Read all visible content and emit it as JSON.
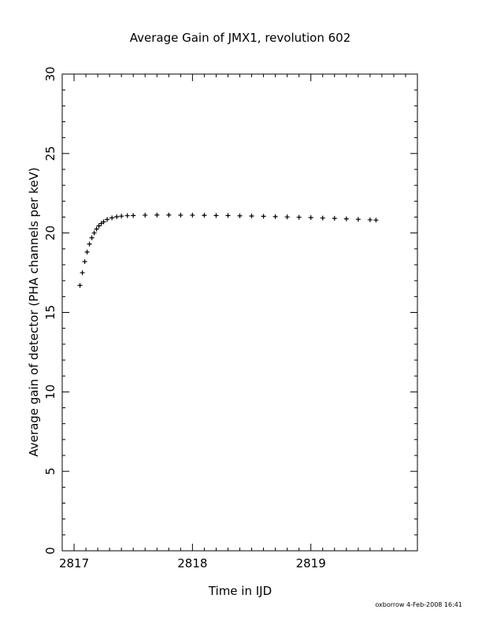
{
  "chart_data": {
    "type": "scatter",
    "title": "Average Gain of JMX1, revolution 602",
    "xlabel": "Time in IJD",
    "ylabel": "Average gain of detector (PHA channels per keV)",
    "xlim": [
      2816.9,
      2819.9
    ],
    "ylim": [
      0,
      30
    ],
    "x_ticks": [
      2817,
      2818,
      2819
    ],
    "x_tick_labels": [
      "2817",
      "2818",
      "2819"
    ],
    "y_ticks": [
      0,
      5,
      10,
      15,
      20,
      25,
      30
    ],
    "y_tick_labels": [
      "0",
      "5",
      "10",
      "15",
      "20",
      "25",
      "30"
    ],
    "grid": false,
    "legend": "none",
    "marker": "plus",
    "series": [
      {
        "x": [
          2817.05,
          2817.07,
          2817.09,
          2817.11,
          2817.13,
          2817.15,
          2817.17,
          2817.19,
          2817.21,
          2817.23,
          2817.25,
          2817.28,
          2817.32,
          2817.36,
          2817.4,
          2817.45,
          2817.5,
          2817.6,
          2817.7,
          2817.8,
          2817.9,
          2818.0,
          2818.1,
          2818.2,
          2818.3,
          2818.4,
          2818.5,
          2818.6,
          2818.7,
          2818.8,
          2818.9,
          2819.0,
          2819.1,
          2819.2,
          2819.3,
          2819.4,
          2819.5,
          2819.55
        ],
        "y": [
          16.7,
          17.5,
          18.2,
          18.8,
          19.3,
          19.7,
          20.0,
          20.25,
          20.45,
          20.6,
          20.7,
          20.85,
          20.95,
          21.02,
          21.06,
          21.09,
          21.1,
          21.12,
          21.13,
          21.13,
          21.12,
          21.12,
          21.11,
          21.1,
          21.1,
          21.08,
          21.07,
          21.05,
          21.03,
          21.01,
          20.99,
          20.97,
          20.94,
          20.92,
          20.89,
          20.86,
          20.83,
          20.81
        ]
      }
    ]
  },
  "footer": {
    "text": "oxborrow  4-Feb-2008 16:41"
  }
}
